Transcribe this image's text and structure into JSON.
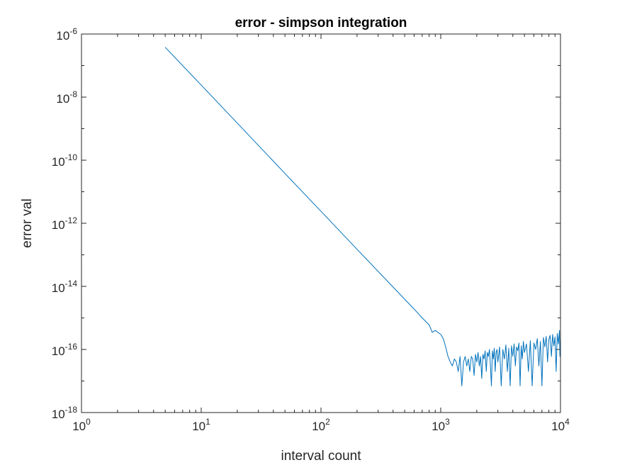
{
  "chart_data": {
    "type": "line",
    "title": "error - simpson integration",
    "xlabel": "interval count",
    "ylabel": "error val",
    "x_scale": "log",
    "y_scale": "log",
    "xlim": [
      1,
      10000
    ],
    "ylim": [
      1e-18,
      1e-06
    ],
    "x_ticks": [
      {
        "value": 1,
        "base": "10",
        "exp": "0"
      },
      {
        "value": 10,
        "base": "10",
        "exp": "1"
      },
      {
        "value": 100,
        "base": "10",
        "exp": "2"
      },
      {
        "value": 1000,
        "base": "10",
        "exp": "3"
      },
      {
        "value": 10000,
        "base": "10",
        "exp": "4"
      }
    ],
    "y_ticks": [
      {
        "value": 1e-18,
        "base": "10",
        "exp": "-18"
      },
      {
        "value": 1e-16,
        "base": "10",
        "exp": "-16"
      },
      {
        "value": 1e-14,
        "base": "10",
        "exp": "-14"
      },
      {
        "value": 1e-12,
        "base": "10",
        "exp": "-12"
      },
      {
        "value": 1e-10,
        "base": "10",
        "exp": "-10"
      },
      {
        "value": 1e-08,
        "base": "10",
        "exp": "-8"
      },
      {
        "value": 1e-06,
        "base": "10",
        "exp": "-6"
      }
    ],
    "grid": false,
    "legend": "none",
    "series": [
      {
        "color": "#0072BD",
        "points": [
          [
            5,
            3.8e-07
          ],
          [
            10,
            2.4e-08
          ],
          [
            20,
            1.5e-09
          ],
          [
            50,
            3.8e-11
          ],
          [
            100,
            2.4e-12
          ],
          [
            200,
            1.5e-13
          ],
          [
            400,
            9.5e-15
          ],
          [
            600,
            1.9e-15
          ],
          [
            700,
            1e-15
          ],
          [
            800,
            6e-16
          ],
          [
            850,
            3.5e-16
          ],
          [
            900,
            4e-16
          ],
          [
            1000,
            3e-16
          ],
          [
            1050,
            2.2e-16
          ],
          [
            1100,
            1.2e-16
          ],
          [
            1150,
            6e-17
          ],
          [
            1200,
            4e-17
          ],
          [
            1250,
            3e-17
          ],
          [
            1300,
            5e-17
          ],
          [
            1350,
            4e-17
          ],
          [
            1400,
            2e-17
          ],
          [
            1450,
            6e-17
          ],
          [
            1500,
            7e-18
          ],
          [
            1550,
            4e-17
          ],
          [
            1600,
            6e-17
          ],
          [
            1650,
            3e-17
          ],
          [
            1700,
            5e-17
          ],
          [
            1750,
            2e-17
          ],
          [
            1800,
            6e-17
          ],
          [
            1850,
            5e-17
          ],
          [
            1900,
            1.5e-17
          ],
          [
            1950,
            7e-17
          ],
          [
            2000,
            4e-17
          ],
          [
            2050,
            8e-17
          ],
          [
            2100,
            3e-17
          ],
          [
            2150,
            6e-17
          ],
          [
            2200,
            1.2e-17
          ],
          [
            2250,
            7e-17
          ],
          [
            2300,
            5e-17
          ],
          [
            2350,
            9e-17
          ],
          [
            2400,
            2e-17
          ],
          [
            2450,
            8e-17
          ],
          [
            2500,
            6e-17
          ],
          [
            2550,
            1e-16
          ],
          [
            2600,
            3e-17
          ],
          [
            2650,
            7e-18
          ],
          [
            2700,
            9e-17
          ],
          [
            2750,
            5e-17
          ],
          [
            2800,
            1.1e-16
          ],
          [
            2850,
            2e-17
          ],
          [
            2900,
            8e-17
          ],
          [
            2950,
            1e-16
          ],
          [
            3000,
            4e-17
          ],
          [
            3100,
            1.2e-16
          ],
          [
            3200,
            7e-18
          ],
          [
            3300,
            1e-16
          ],
          [
            3400,
            5e-17
          ],
          [
            3500,
            1.4e-16
          ],
          [
            3600,
            2e-17
          ],
          [
            3700,
            1.1e-16
          ],
          [
            3800,
            7e-18
          ],
          [
            3900,
            1.3e-16
          ],
          [
            4000,
            6e-17
          ],
          [
            4100,
            1.5e-16
          ],
          [
            4200,
            3e-17
          ],
          [
            4300,
            1.2e-16
          ],
          [
            4400,
            9e-17
          ],
          [
            4500,
            1.6e-16
          ],
          [
            4600,
            7e-18
          ],
          [
            4700,
            1.3e-16
          ],
          [
            4800,
            5e-17
          ],
          [
            4900,
            1.8e-16
          ],
          [
            5000,
            8e-17
          ],
          [
            5200,
            1.5e-16
          ],
          [
            5400,
            2e-17
          ],
          [
            5600,
            1.9e-16
          ],
          [
            5800,
            7e-18
          ],
          [
            6000,
            1.6e-16
          ],
          [
            6200,
            1e-16
          ],
          [
            6400,
            2.2e-16
          ],
          [
            6600,
            3e-17
          ],
          [
            6800,
            1.8e-16
          ],
          [
            7000,
            7e-18
          ],
          [
            7200,
            2.4e-16
          ],
          [
            7400,
            1.2e-16
          ],
          [
            7600,
            2.6e-16
          ],
          [
            7800,
            4e-17
          ],
          [
            8000,
            2.1e-16
          ],
          [
            8200,
            2.8e-16
          ],
          [
            8400,
            6e-17
          ],
          [
            8600,
            3e-16
          ],
          [
            8800,
            1.3e-16
          ],
          [
            9000,
            2.5e-16
          ],
          [
            9200,
            2e-17
          ],
          [
            9400,
            3.2e-16
          ],
          [
            9600,
            1.5e-16
          ],
          [
            9800,
            4e-16
          ],
          [
            9900,
            6e-17
          ],
          [
            10000,
            2e-16
          ]
        ]
      }
    ]
  }
}
